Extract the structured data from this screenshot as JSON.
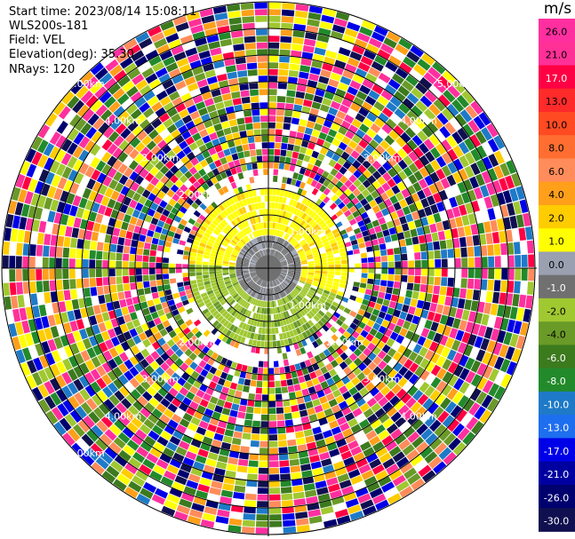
{
  "header": {
    "start_time": "Start time: 2023/08/14 15:08:11",
    "site": "WLS200s-181",
    "field": "Field: VEL",
    "elevation": "Elevation(deg): 35.30",
    "nrays": "NRays: 120"
  },
  "chart_data": {
    "type": "heatmap",
    "projection": "polar-ppi",
    "field": "VEL",
    "elevation_deg": 35.3,
    "n_rays": 120,
    "range_rings_km": [
      0.5,
      1.0,
      1.5,
      2.0,
      2.5,
      3.0,
      3.5,
      4.0,
      4.5,
      5.0
    ],
    "range_labels": [
      {
        "text": "1.00km",
        "quadrant": "NE",
        "ring": 1.0
      },
      {
        "text": "1.00km",
        "quadrant": "SE",
        "ring": 1.0
      },
      {
        "text": "2.00km",
        "quadrant": "NW",
        "ring": 2.0
      },
      {
        "text": "2.00km",
        "quadrant": "SW",
        "ring": 2.0
      },
      {
        "text": "2.00km",
        "quadrant": "SE",
        "ring": 2.0
      },
      {
        "text": "3.00km",
        "quadrant": "NW",
        "ring": 3.0
      },
      {
        "text": "3.00km",
        "quadrant": "NE",
        "ring": 3.0
      },
      {
        "text": "3.00km",
        "quadrant": "SW",
        "ring": 3.0
      },
      {
        "text": "3.00km",
        "quadrant": "SE",
        "ring": 3.0
      },
      {
        "text": "4.00km",
        "quadrant": "NW",
        "ring": 4.0
      },
      {
        "text": "4.00km",
        "quadrant": "NE",
        "ring": 4.0
      },
      {
        "text": "4.00km",
        "quadrant": "SW",
        "ring": 4.0
      },
      {
        "text": "4.00km",
        "quadrant": "SE",
        "ring": 4.0
      },
      {
        "text": "5.00km",
        "quadrant": "NW",
        "ring": 5.0
      },
      {
        "text": "5.00km",
        "quadrant": "NE",
        "ring": 5.0
      },
      {
        "text": "5.00km",
        "quadrant": "SW",
        "ring": 5.0
      }
    ],
    "colorbar": {
      "unit": "m/s",
      "ticks": [
        "26.0",
        "21.0",
        "17.0",
        "13.0",
        "10.0",
        "8.0",
        "6.0",
        "4.0",
        "2.0",
        "1.0",
        "0.0",
        "-1.0",
        "-2.0",
        "-4.0",
        "-6.0",
        "-8.0",
        "-10.0",
        "-13.0",
        "-17.0",
        "-21.0",
        "-26.0",
        "-30.0"
      ],
      "colors": [
        "#ff2fa0",
        "#ff3096",
        "#ff0044",
        "#ff2a2a",
        "#ff4a22",
        "#ff6e30",
        "#ff8c5a",
        "#ff9f1a",
        "#ffcc00",
        "#ffff00",
        "#9aa0b0",
        "#707070",
        "#a0c830",
        "#6a9a28",
        "#3c7a1e",
        "#228a2a",
        "#1e7ac8",
        "#1e6ef0",
        "#0000e8",
        "#0000a0",
        "#00006e",
        "#101050"
      ]
    }
  }
}
